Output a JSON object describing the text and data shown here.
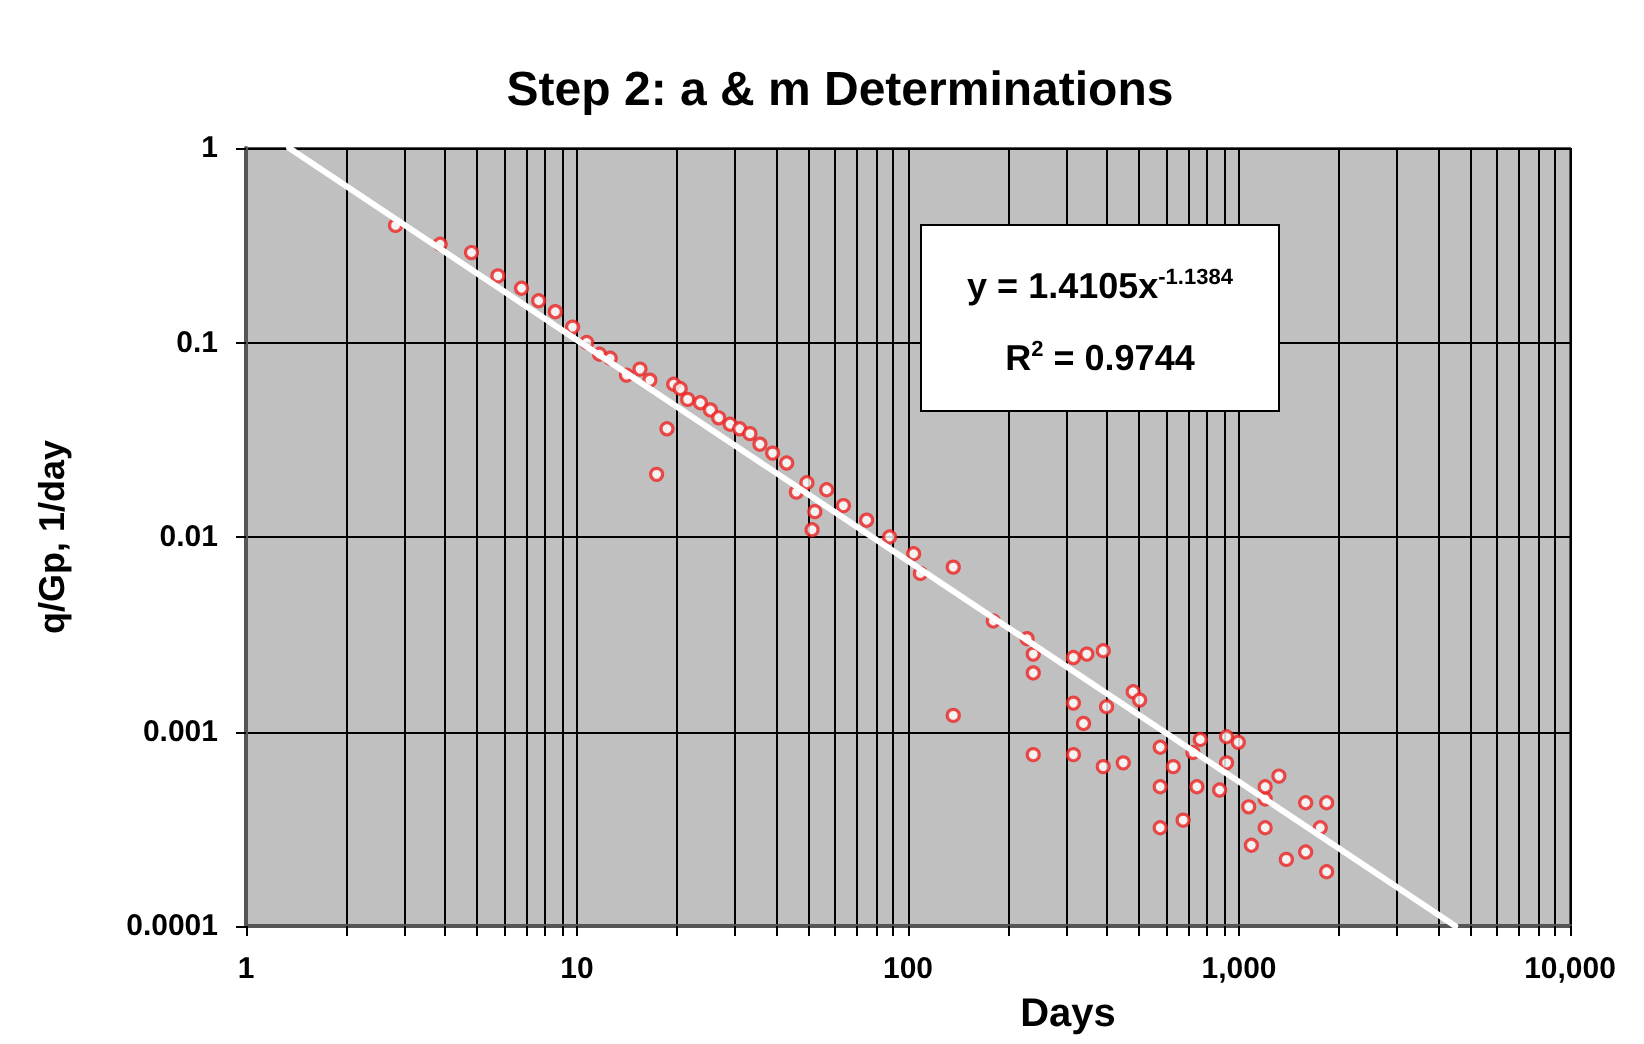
{
  "chart_data": {
    "type": "scatter",
    "title": "Step 2: a & m Determinations",
    "xlabel": "Days",
    "ylabel": "q/Gp, 1/day",
    "annotations": [
      "y = 1.4105x$^{-1.1384}$",
      "R$^{2}$ = 0.9744"
    ],
    "log": "xy",
    "grid": true,
    "xlim": [
      1,
      10000
    ],
    "ylim": [
      0.0001,
      1
    ],
    "xticks": [
      1,
      {
        "value": 2,
        "label": null
      },
      {
        "value": 3,
        "label": null
      },
      {
        "value": 4,
        "label": null
      },
      {
        "value": 5,
        "label": null
      },
      {
        "value": 6,
        "label": null
      },
      {
        "value": 7,
        "label": null
      },
      {
        "value": 8,
        "label": null
      },
      {
        "value": 9,
        "label": null
      },
      10,
      {
        "value": 20,
        "label": null
      },
      {
        "value": 30,
        "label": null
      },
      {
        "value": 40,
        "label": null
      },
      {
        "value": 50,
        "label": null
      },
      {
        "value": 60,
        "label": null
      },
      {
        "value": 70,
        "label": null
      },
      {
        "value": 80,
        "label": null
      },
      {
        "value": 90,
        "label": null
      },
      100,
      {
        "value": 200,
        "label": null
      },
      {
        "value": 300,
        "label": null
      },
      {
        "value": 400,
        "label": null
      },
      {
        "value": 500,
        "label": null
      },
      {
        "value": 600,
        "label": null
      },
      {
        "value": 700,
        "label": null
      },
      {
        "value": 800,
        "label": null
      },
      {
        "value": 900,
        "label": null
      },
      {
        "value": 1000,
        "label": "1,000"
      },
      {
        "value": 2000,
        "label": null
      },
      {
        "value": 3000,
        "label": null
      },
      {
        "value": 4000,
        "label": null
      },
      {
        "value": 5000,
        "label": null
      },
      {
        "value": 6000,
        "label": null
      },
      {
        "value": 7000,
        "label": null
      },
      {
        "value": 8000,
        "label": null
      },
      {
        "value": 9000,
        "label": null
      },
      {
        "value": 10000,
        "label": "10,000"
      }
    ],
    "yticks": [
      0.0001,
      0.001,
      0.01,
      0.1,
      1
    ],
    "series": [
      {
        "marker": "circle",
        "color": "#ee2222",
        "x": [
          2.83,
          3.86,
          4.8,
          5.77,
          6.8,
          7.66,
          8.6,
          9.7,
          10.7,
          11.7,
          12.6,
          14.1,
          15.5,
          16.6,
          17.4,
          18.7,
          19.6,
          20.5,
          21.6,
          23.6,
          25.3,
          26.8,
          29,
          31,
          33.3,
          35.7,
          39,
          43,
          46,
          49.5,
          51.3,
          52.3,
          56.8,
          63.8,
          75,
          88,
          104,
          109,
          137,
          137,
          181,
          229,
          239,
          239,
          239,
          316,
          316,
          316,
          347,
          339,
          389,
          389,
          398,
          447,
          479,
          501,
          578,
          578,
          578,
          633,
          678,
          726,
          746,
          764,
          874,
          917,
          917,
          995,
          1070,
          1090,
          1200,
          1200,
          1200,
          1320,
          1390,
          1590,
          1590,
          1760,
          1840,
          1840
        ],
        "values": [
          0.4,
          0.32,
          0.29,
          0.22,
          0.19,
          0.164,
          0.144,
          0.12,
          0.1,
          0.087,
          0.083,
          0.068,
          0.073,
          0.064,
          0.021,
          0.036,
          0.061,
          0.058,
          0.051,
          0.049,
          0.045,
          0.041,
          0.038,
          0.036,
          0.034,
          0.03,
          0.027,
          0.024,
          0.017,
          0.019,
          0.0109,
          0.0135,
          0.0175,
          0.0145,
          0.0122,
          0.01,
          0.0082,
          0.0065,
          0.007,
          0.00121,
          0.0037,
          0.003,
          0.0025,
          0.002,
          0.00076,
          0.0024,
          0.0014,
          0.00076,
          0.0025,
          0.0011,
          0.0026,
          0.00066,
          0.00134,
          0.00069,
          0.0016,
          0.00145,
          0.00083,
          0.00052,
          0.00032,
          0.00066,
          0.00035,
          0.00078,
          0.00052,
          0.00091,
          0.0005,
          0.00094,
          0.00069,
          0.00088,
          0.00041,
          0.00026,
          0.00045,
          0.00032,
          0.00052,
          0.00059,
          0.00022,
          0.00043,
          0.00024,
          0.00032,
          0.00043,
          0.00019
        ]
      },
      {
        "type": "line",
        "marker": "none",
        "color": "#ffffff",
        "x": [
          1.35,
          4500
        ],
        "values": [
          1.0,
          0.0001
        ]
      }
    ]
  }
}
